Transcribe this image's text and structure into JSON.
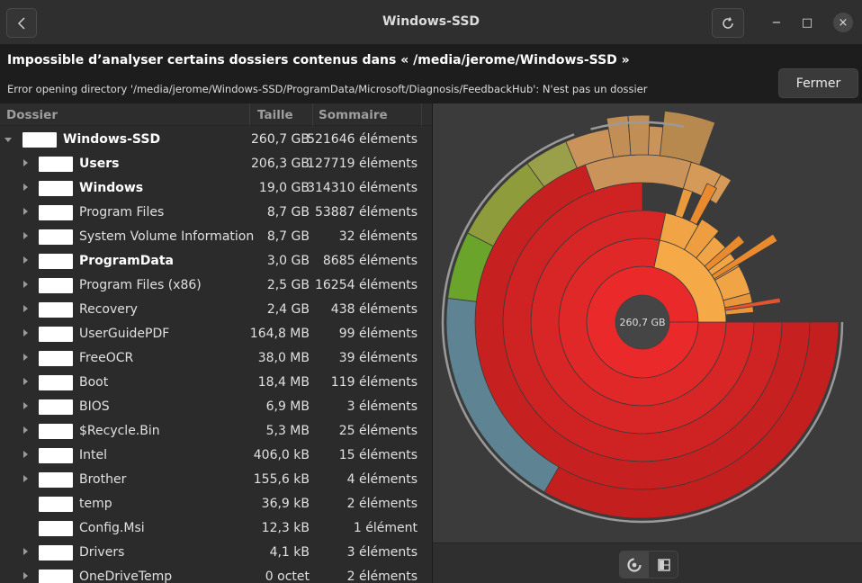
{
  "window": {
    "title": "Windows-SSD",
    "back_icon": "chevron-left-icon",
    "refresh_icon": "refresh-icon",
    "minimize_label": "−",
    "maximize_label": "□",
    "close_label": "×"
  },
  "infobar": {
    "title": "Impossible d’analyser certains dossiers contenus dans « /media/jerome/Windows-SSD »",
    "message": "Error opening directory '/media/jerome/Windows-SSD/ProgramData/Microsoft/Diagnosis/FeedbackHub': N'est pas un dossier",
    "close_button": "Fermer"
  },
  "tree": {
    "columns": {
      "folder": "Dossier",
      "size": "Taille",
      "contents": "Sommaire"
    },
    "rows": [
      {
        "name": "Windows-SSD",
        "size": "260,7 GB",
        "count": "521646 éléments",
        "bold": true,
        "level": 0,
        "expander": "down"
      },
      {
        "name": "Users",
        "size": "206,3 GB",
        "count": "127719 éléments",
        "bold": true,
        "level": 1,
        "expander": "right"
      },
      {
        "name": "Windows",
        "size": "19,0 GB",
        "count": "314310 éléments",
        "bold": true,
        "level": 1,
        "expander": "right"
      },
      {
        "name": "Program Files",
        "size": "8,7 GB",
        "count": "53887 éléments",
        "bold": false,
        "level": 1,
        "expander": "right"
      },
      {
        "name": "System Volume Information",
        "size": "8,7 GB",
        "count": "32 éléments",
        "bold": false,
        "level": 1,
        "expander": "right"
      },
      {
        "name": "ProgramData",
        "size": "3,0 GB",
        "count": "8685 éléments",
        "bold": true,
        "level": 1,
        "expander": "right"
      },
      {
        "name": "Program Files (x86)",
        "size": "2,5 GB",
        "count": "16254 éléments",
        "bold": false,
        "level": 1,
        "expander": "right"
      },
      {
        "name": "Recovery",
        "size": "2,4 GB",
        "count": "438 éléments",
        "bold": false,
        "level": 1,
        "expander": "right"
      },
      {
        "name": "UserGuidePDF",
        "size": "164,8 MB",
        "count": "99 éléments",
        "bold": false,
        "level": 1,
        "expander": "right"
      },
      {
        "name": "FreeOCR",
        "size": "38,0 MB",
        "count": "39 éléments",
        "bold": false,
        "level": 1,
        "expander": "right"
      },
      {
        "name": "Boot",
        "size": "18,4 MB",
        "count": "119 éléments",
        "bold": false,
        "level": 1,
        "expander": "right"
      },
      {
        "name": "BIOS",
        "size": "6,9 MB",
        "count": "3 éléments",
        "bold": false,
        "level": 1,
        "expander": "right"
      },
      {
        "name": "$Recycle.Bin",
        "size": "5,3 MB",
        "count": "25 éléments",
        "bold": false,
        "level": 1,
        "expander": "right"
      },
      {
        "name": "Intel",
        "size": "406,0 kB",
        "count": "15 éléments",
        "bold": false,
        "level": 1,
        "expander": "right"
      },
      {
        "name": "Brother",
        "size": "155,6 kB",
        "count": "4 éléments",
        "bold": false,
        "level": 1,
        "expander": "right"
      },
      {
        "name": "temp",
        "size": "36,9 kB",
        "count": "2 éléments",
        "bold": false,
        "level": 1,
        "expander": "none"
      },
      {
        "name": "Config.Msi",
        "size": "12,3 kB",
        "count": "1 élément",
        "bold": false,
        "level": 1,
        "expander": "none"
      },
      {
        "name": "Drivers",
        "size": "4,1 kB",
        "count": "3 éléments",
        "bold": false,
        "level": 1,
        "expander": "right"
      },
      {
        "name": "OneDriveTemp",
        "size": "0 octet",
        "count": "2 éléments",
        "bold": false,
        "level": 1,
        "expander": "right"
      }
    ]
  },
  "chart": {
    "center_label": "260,7 GB",
    "colors": {
      "red_levels": [
        "#ea2a2a",
        "#e02828",
        "#d82525",
        "#cf2323",
        "#c72020"
      ],
      "orange": "#f5a947",
      "orange_dark": "#e98a2e",
      "tan": "#c9935a",
      "olive": "#8f9c3c",
      "green": "#6aa42b",
      "steel_blue": "#5e8494",
      "outline": "#9a9a9a"
    }
  },
  "view_switch": {
    "rings_icon": "rings-chart-icon",
    "treemap_icon": "treemap-chart-icon"
  }
}
